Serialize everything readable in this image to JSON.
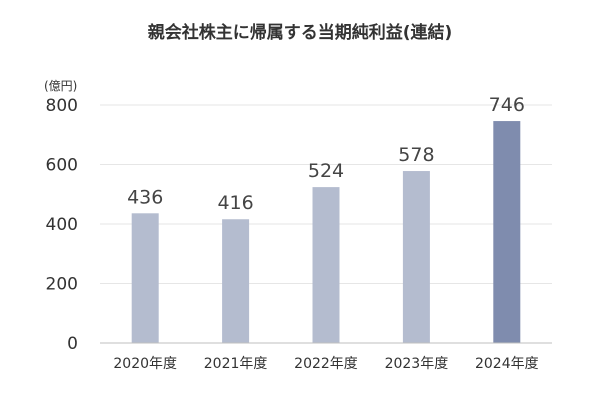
{
  "chart_data": {
    "type": "bar",
    "title": "親会社株主に帰属する当期純利益(連結)",
    "unit_label": "(億円)",
    "categories": [
      "2020年度",
      "2021年度",
      "2022年度",
      "2023年度",
      "2024年度"
    ],
    "values": [
      436,
      416,
      524,
      578,
      746
    ],
    "data_labels": [
      "436",
      "416",
      "524",
      "578",
      "746"
    ],
    "ylim": [
      0,
      800
    ],
    "yticks": [
      0,
      200,
      400,
      600,
      800
    ],
    "ytick_labels": [
      "0",
      "200",
      "400",
      "600",
      "800"
    ],
    "grid": true,
    "legend": "none",
    "colors": {
      "bar": "#b4bccf",
      "highlight_bar": "#7f8cae"
    },
    "highlight_index": 4
  }
}
